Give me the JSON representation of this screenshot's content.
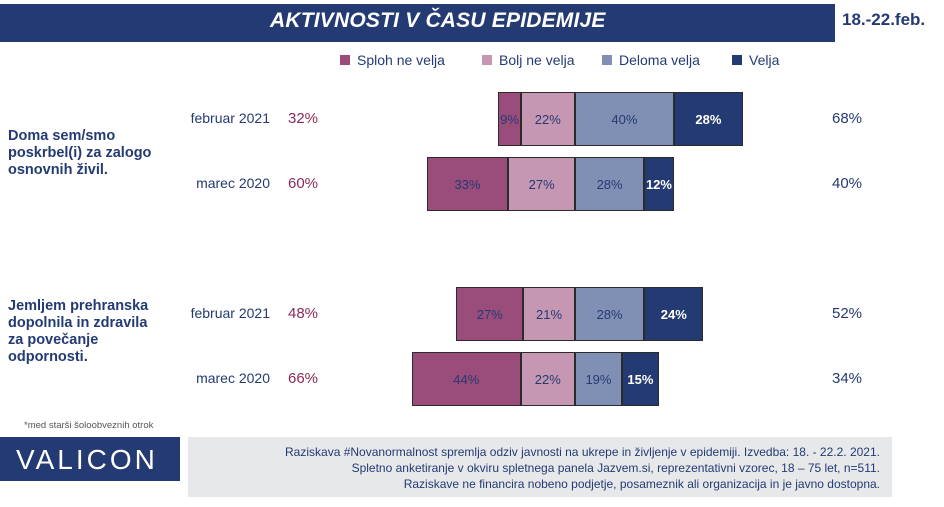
{
  "header": {
    "title": "AKTIVNOSTI V ČASU EPIDEMIJE",
    "date": "18.-22.feb."
  },
  "colors": {
    "header_bg": "#243a73",
    "left_pct": "#8b2a5a"
  },
  "chart_data": {
    "type": "bar",
    "orientation": "horizontal",
    "stacked": "diverging",
    "legend": {
      "placement": "top",
      "items": [
        {
          "label": "Sploh ne velja",
          "color": "#9a4d7b"
        },
        {
          "label": "Bolj ne velja",
          "color": "#c597b3"
        },
        {
          "label": "Deloma velja",
          "color": "#8090b5"
        },
        {
          "label": "Velja",
          "color": "#243a73"
        }
      ]
    },
    "groups": [
      {
        "question": [
          "Doma sem/smo",
          "poskrbel(i) za zalogo",
          "osnovnih živil."
        ],
        "rows": [
          {
            "label": "februar 2021",
            "values": [
              9,
              22,
              40,
              28
            ],
            "labels": [
              "9%",
              "22%",
              "40%",
              "28%"
            ],
            "negative_total": "32%",
            "positive_total": "68%"
          },
          {
            "label": "marec 2020",
            "values": [
              33,
              27,
              28,
              12
            ],
            "labels": [
              "33%",
              "27%",
              "28%",
              "12%"
            ],
            "negative_total": "60%",
            "positive_total": "40%"
          }
        ]
      },
      {
        "question": [
          "Jemljem prehranska",
          "dopolnila in zdravila",
          "za povečanje",
          "odpornosti."
        ],
        "rows": [
          {
            "label": "februar 2021",
            "values": [
              27,
              21,
              28,
              24
            ],
            "labels": [
              "27%",
              "21%",
              "28%",
              "24%"
            ],
            "negative_total": "48%",
            "positive_total": "52%"
          },
          {
            "label": "marec 2020",
            "values": [
              44,
              22,
              19,
              15
            ],
            "labels": [
              "44%",
              "22%",
              "19%",
              "15%"
            ],
            "negative_total": "66%",
            "positive_total": "34%"
          }
        ]
      }
    ]
  },
  "footer": {
    "footnote": "*med starši šoloobveznih otrok",
    "logo": "VALICON",
    "source_lines": [
      "Raziskava #Novanormalnost spremlja odziv javnosti na ukrepe in življenje v epidemiji. Izvedba: 18. - 22.2. 2021.",
      "Spletno anketiranje v okviru spletnega panela Jazvem.si, reprezentativni vzorec, 18 – 75 let, n=511.",
      "Raziskave ne financira nobeno podjetje, posameznik ali organizacija in je javno dostopna."
    ]
  }
}
